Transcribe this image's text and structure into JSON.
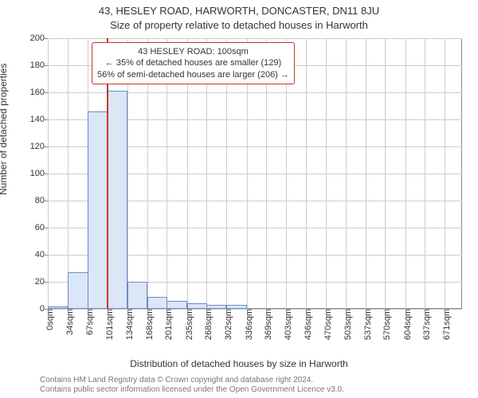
{
  "header": {
    "title": "43, HESLEY ROAD, HARWORTH, DONCASTER, DN11 8JU",
    "subtitle": "Size of property relative to detached houses in Harworth"
  },
  "chart": {
    "type": "histogram",
    "ylabel": "Number of detached properties",
    "xlabel": "Distribution of detached houses by size in Harworth",
    "ylim": [
      0,
      200
    ],
    "ytick_step": 20,
    "yticks": [
      0,
      20,
      40,
      60,
      80,
      100,
      120,
      140,
      160,
      180,
      200
    ],
    "xlim": [
      0,
      700
    ],
    "xticks": [
      0,
      34,
      67,
      101,
      134,
      168,
      201,
      235,
      268,
      302,
      336,
      369,
      403,
      436,
      470,
      503,
      537,
      570,
      604,
      637,
      671
    ],
    "xtick_unit": "sqm",
    "bin_width": 34,
    "bars": [
      {
        "x": 0,
        "count": 2
      },
      {
        "x": 34,
        "count": 27
      },
      {
        "x": 67,
        "count": 146
      },
      {
        "x": 101,
        "count": 161
      },
      {
        "x": 134,
        "count": 20
      },
      {
        "x": 168,
        "count": 9
      },
      {
        "x": 201,
        "count": 6
      },
      {
        "x": 235,
        "count": 4
      },
      {
        "x": 268,
        "count": 3
      },
      {
        "x": 302,
        "count": 3
      }
    ],
    "reference_line": {
      "x": 100,
      "color": "#c0392b"
    },
    "callout": {
      "line1": "43 HESLEY ROAD: 100sqm",
      "line2": "← 35% of detached houses are smaller (129)",
      "line3": "56% of semi-detached houses are larger (206) →"
    },
    "colors": {
      "bar_fill": "#dbe6f6",
      "bar_border": "#6a8bc9",
      "grid": "#cccccc",
      "axis": "#888888",
      "background": "#ffffff",
      "refline": "#c0392b",
      "text": "#333333"
    },
    "fonts": {
      "title_size_pt": 13,
      "label_size_pt": 12,
      "tick_size_pt": 11,
      "callout_size_pt": 11
    }
  },
  "attribution": {
    "line1": "Contains HM Land Registry data © Crown copyright and database right 2024.",
    "line2": "Contains public sector information licensed under the Open Government Licence v3.0."
  }
}
